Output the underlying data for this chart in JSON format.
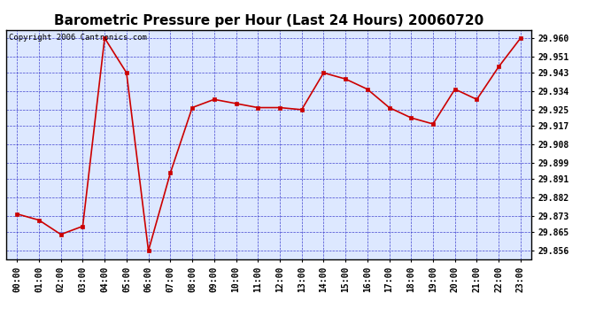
{
  "title": "Barometric Pressure per Hour (Last 24 Hours) 20060720",
  "copyright": "Copyright 2006 Cantronics.com",
  "hours": [
    "00:00",
    "01:00",
    "02:00",
    "03:00",
    "04:00",
    "05:00",
    "06:00",
    "07:00",
    "08:00",
    "09:00",
    "10:00",
    "11:00",
    "12:00",
    "13:00",
    "14:00",
    "15:00",
    "16:00",
    "17:00",
    "18:00",
    "19:00",
    "20:00",
    "21:00",
    "22:00",
    "23:00"
  ],
  "values": [
    29.874,
    29.871,
    29.864,
    29.868,
    29.96,
    29.943,
    29.856,
    29.894,
    29.926,
    29.93,
    29.928,
    29.926,
    29.926,
    29.925,
    29.943,
    29.94,
    29.935,
    29.926,
    29.921,
    29.918,
    29.935,
    29.93,
    29.946,
    29.96
  ],
  "y_ticks": [
    29.856,
    29.865,
    29.873,
    29.882,
    29.891,
    29.899,
    29.908,
    29.917,
    29.925,
    29.934,
    29.943,
    29.951,
    29.96
  ],
  "ylim_min": 29.852,
  "ylim_max": 29.964,
  "line_color": "#cc0000",
  "marker_color": "#cc0000",
  "grid_color": "#3333cc",
  "background_color": "#ffffff",
  "plot_bg_color": "#dde8ff",
  "title_fontsize": 11,
  "tick_fontsize": 7,
  "copyright_fontsize": 6.5
}
